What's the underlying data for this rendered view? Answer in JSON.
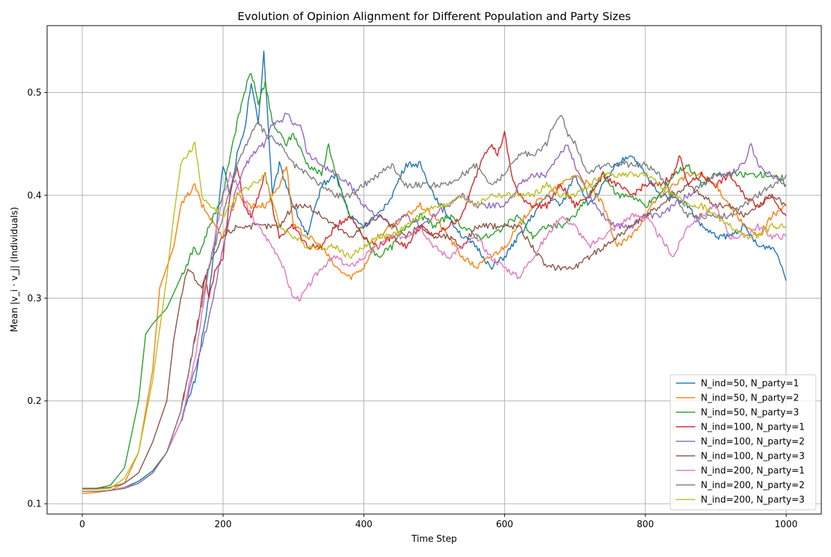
{
  "chart_data": {
    "type": "line",
    "title": "Evolution of Opinion Alignment for Different Population and Party Sizes",
    "xlabel": "Time Step",
    "ylabel": "Mean |v_i · v_j| (Individuals)",
    "xlim": [
      -50,
      1050
    ],
    "ylim": [
      0.09,
      0.565
    ],
    "x_ticks": [
      0,
      200,
      400,
      600,
      800,
      1000
    ],
    "y_ticks": [
      0.1,
      0.2,
      0.3,
      0.4,
      0.5
    ],
    "x_tick_labels": [
      "0",
      "200",
      "400",
      "600",
      "800",
      "1000"
    ],
    "y_tick_labels": [
      "0.1",
      "0.2",
      "0.3",
      "0.4",
      "0.5"
    ],
    "grid": true,
    "legend_position": "bottom-right",
    "series": [
      {
        "name": "N_ind=50, N_party=1",
        "color": "#1f77b4",
        "x": [
          0,
          20,
          40,
          60,
          80,
          100,
          120,
          140,
          160,
          180,
          200,
          210,
          220,
          230,
          240,
          250,
          258,
          270,
          280,
          300,
          320,
          340,
          360,
          380,
          400,
          420,
          440,
          460,
          480,
          500,
          520,
          540,
          560,
          580,
          600,
          620,
          640,
          660,
          680,
          700,
          720,
          740,
          760,
          780,
          800,
          820,
          840,
          860,
          880,
          900,
          920,
          940,
          960,
          980,
          990,
          1000
        ],
        "y": [
          0.112,
          0.112,
          0.113,
          0.116,
          0.122,
          0.132,
          0.15,
          0.18,
          0.22,
          0.3,
          0.43,
          0.4,
          0.44,
          0.46,
          0.51,
          0.47,
          0.54,
          0.4,
          0.43,
          0.39,
          0.36,
          0.41,
          0.42,
          0.38,
          0.37,
          0.38,
          0.4,
          0.43,
          0.43,
          0.4,
          0.38,
          0.36,
          0.35,
          0.33,
          0.34,
          0.36,
          0.38,
          0.4,
          0.39,
          0.42,
          0.39,
          0.41,
          0.43,
          0.44,
          0.42,
          0.4,
          0.4,
          0.39,
          0.37,
          0.36,
          0.36,
          0.37,
          0.35,
          0.35,
          0.34,
          0.317
        ]
      },
      {
        "name": "N_ind=50, N_party=2",
        "color": "#ff7f0e",
        "x": [
          0,
          20,
          40,
          60,
          80,
          100,
          110,
          120,
          130,
          140,
          150,
          160,
          170,
          180,
          200,
          220,
          240,
          260,
          280,
          290,
          300,
          320,
          340,
          360,
          380,
          400,
          420,
          440,
          460,
          480,
          500,
          520,
          540,
          560,
          580,
          600,
          620,
          640,
          660,
          680,
          700,
          720,
          740,
          760,
          780,
          800,
          820,
          840,
          860,
          880,
          900,
          920,
          940,
          960,
          980,
          1000
        ],
        "y": [
          0.11,
          0.111,
          0.113,
          0.12,
          0.15,
          0.23,
          0.31,
          0.33,
          0.35,
          0.39,
          0.4,
          0.41,
          0.39,
          0.38,
          0.36,
          0.4,
          0.39,
          0.39,
          0.41,
          0.43,
          0.37,
          0.36,
          0.35,
          0.33,
          0.32,
          0.33,
          0.36,
          0.37,
          0.38,
          0.39,
          0.38,
          0.36,
          0.34,
          0.33,
          0.34,
          0.35,
          0.37,
          0.39,
          0.4,
          0.41,
          0.42,
          0.41,
          0.39,
          0.35,
          0.36,
          0.38,
          0.4,
          0.41,
          0.42,
          0.42,
          0.41,
          0.39,
          0.37,
          0.36,
          0.38,
          0.39
        ]
      },
      {
        "name": "N_ind=50, N_party=3",
        "color": "#2ca02c",
        "x": [
          0,
          20,
          40,
          60,
          80,
          90,
          100,
          120,
          140,
          160,
          165,
          180,
          200,
          210,
          220,
          230,
          240,
          250,
          260,
          270,
          280,
          290,
          300,
          320,
          340,
          350,
          360,
          380,
          400,
          420,
          440,
          460,
          480,
          500,
          520,
          540,
          560,
          580,
          600,
          620,
          640,
          660,
          680,
          700,
          720,
          740,
          760,
          780,
          800,
          820,
          840,
          860,
          880,
          900,
          920,
          940,
          960,
          980,
          1000
        ],
        "y": [
          0.115,
          0.115,
          0.118,
          0.135,
          0.2,
          0.265,
          0.275,
          0.29,
          0.32,
          0.35,
          0.34,
          0.37,
          0.4,
          0.44,
          0.47,
          0.5,
          0.52,
          0.49,
          0.51,
          0.47,
          0.46,
          0.45,
          0.46,
          0.43,
          0.42,
          0.45,
          0.42,
          0.38,
          0.36,
          0.34,
          0.35,
          0.37,
          0.38,
          0.37,
          0.38,
          0.37,
          0.36,
          0.36,
          0.37,
          0.38,
          0.36,
          0.37,
          0.37,
          0.38,
          0.4,
          0.42,
          0.4,
          0.4,
          0.39,
          0.4,
          0.42,
          0.43,
          0.41,
          0.42,
          0.42,
          0.42,
          0.42,
          0.42,
          0.41
        ]
      },
      {
        "name": "N_ind=100, N_party=1",
        "color": "#d62728",
        "x": [
          0,
          20,
          40,
          60,
          80,
          100,
          120,
          140,
          160,
          175,
          180,
          190,
          200,
          210,
          220,
          230,
          240,
          260,
          280,
          300,
          320,
          340,
          360,
          380,
          400,
          420,
          440,
          460,
          480,
          500,
          520,
          540,
          560,
          570,
          580,
          590,
          600,
          610,
          620,
          640,
          660,
          680,
          700,
          720,
          740,
          760,
          780,
          800,
          820,
          840,
          850,
          860,
          880,
          900,
          920,
          940,
          960,
          980,
          1000
        ],
        "y": [
          0.112,
          0.112,
          0.113,
          0.115,
          0.12,
          0.13,
          0.15,
          0.19,
          0.26,
          0.32,
          0.3,
          0.33,
          0.34,
          0.4,
          0.43,
          0.39,
          0.38,
          0.42,
          0.36,
          0.37,
          0.35,
          0.35,
          0.37,
          0.38,
          0.36,
          0.35,
          0.36,
          0.35,
          0.37,
          0.36,
          0.37,
          0.38,
          0.42,
          0.44,
          0.45,
          0.44,
          0.46,
          0.42,
          0.4,
          0.39,
          0.39,
          0.41,
          0.39,
          0.4,
          0.42,
          0.41,
          0.4,
          0.41,
          0.41,
          0.42,
          0.44,
          0.41,
          0.42,
          0.41,
          0.42,
          0.4,
          0.39,
          0.4,
          0.38
        ]
      },
      {
        "name": "N_ind=100, N_party=2",
        "color": "#9467bd",
        "x": [
          0,
          20,
          40,
          60,
          80,
          100,
          120,
          140,
          160,
          180,
          200,
          220,
          240,
          260,
          270,
          280,
          290,
          300,
          310,
          320,
          340,
          360,
          380,
          400,
          420,
          440,
          460,
          480,
          500,
          520,
          540,
          560,
          580,
          600,
          620,
          640,
          660,
          680,
          690,
          700,
          720,
          740,
          760,
          780,
          800,
          820,
          840,
          860,
          880,
          900,
          920,
          940,
          950,
          960,
          980,
          1000
        ],
        "y": [
          0.112,
          0.112,
          0.113,
          0.115,
          0.12,
          0.13,
          0.15,
          0.18,
          0.23,
          0.28,
          0.35,
          0.41,
          0.44,
          0.45,
          0.47,
          0.47,
          0.48,
          0.47,
          0.47,
          0.44,
          0.43,
          0.42,
          0.41,
          0.39,
          0.38,
          0.37,
          0.38,
          0.37,
          0.38,
          0.39,
          0.4,
          0.39,
          0.39,
          0.39,
          0.41,
          0.42,
          0.42,
          0.44,
          0.45,
          0.43,
          0.4,
          0.38,
          0.37,
          0.37,
          0.38,
          0.38,
          0.39,
          0.4,
          0.41,
          0.42,
          0.42,
          0.43,
          0.45,
          0.43,
          0.42,
          0.41
        ]
      },
      {
        "name": "N_ind=100, N_party=3",
        "color": "#8c564b",
        "x": [
          0,
          20,
          40,
          60,
          80,
          100,
          120,
          130,
          140,
          150,
          160,
          170,
          180,
          200,
          220,
          240,
          260,
          280,
          300,
          320,
          340,
          360,
          380,
          400,
          420,
          440,
          460,
          480,
          500,
          520,
          540,
          560,
          580,
          600,
          620,
          640,
          660,
          680,
          700,
          720,
          740,
          760,
          780,
          800,
          820,
          840,
          860,
          880,
          900,
          920,
          940,
          960,
          980,
          1000
        ],
        "y": [
          0.115,
          0.115,
          0.116,
          0.12,
          0.13,
          0.16,
          0.2,
          0.26,
          0.3,
          0.33,
          0.32,
          0.31,
          0.33,
          0.36,
          0.37,
          0.37,
          0.37,
          0.37,
          0.39,
          0.39,
          0.38,
          0.37,
          0.36,
          0.37,
          0.38,
          0.37,
          0.36,
          0.37,
          0.36,
          0.36,
          0.35,
          0.37,
          0.37,
          0.37,
          0.37,
          0.35,
          0.33,
          0.33,
          0.33,
          0.34,
          0.35,
          0.36,
          0.37,
          0.38,
          0.39,
          0.4,
          0.41,
          0.4,
          0.39,
          0.39,
          0.38,
          0.39,
          0.4,
          0.39
        ]
      },
      {
        "name": "N_ind=200, N_party=1",
        "color": "#e377c2",
        "x": [
          0,
          20,
          40,
          60,
          80,
          100,
          120,
          140,
          160,
          180,
          200,
          210,
          220,
          240,
          260,
          280,
          300,
          310,
          320,
          340,
          360,
          380,
          400,
          420,
          440,
          460,
          480,
          500,
          520,
          540,
          560,
          580,
          600,
          620,
          640,
          660,
          680,
          700,
          720,
          740,
          760,
          780,
          800,
          820,
          840,
          860,
          880,
          900,
          920,
          940,
          960,
          980,
          1000
        ],
        "y": [
          0.112,
          0.112,
          0.113,
          0.116,
          0.12,
          0.13,
          0.15,
          0.18,
          0.24,
          0.33,
          0.4,
          0.42,
          0.41,
          0.38,
          0.36,
          0.34,
          0.3,
          0.3,
          0.31,
          0.33,
          0.34,
          0.33,
          0.34,
          0.35,
          0.36,
          0.36,
          0.37,
          0.35,
          0.34,
          0.35,
          0.36,
          0.34,
          0.33,
          0.32,
          0.34,
          0.36,
          0.38,
          0.37,
          0.35,
          0.36,
          0.37,
          0.38,
          0.38,
          0.36,
          0.34,
          0.37,
          0.38,
          0.39,
          0.36,
          0.36,
          0.37,
          0.36,
          0.36
        ]
      },
      {
        "name": "N_ind=200, N_party=2",
        "color": "#7f7f7f",
        "x": [
          0,
          20,
          40,
          60,
          80,
          100,
          120,
          140,
          160,
          180,
          200,
          220,
          240,
          250,
          260,
          280,
          300,
          320,
          340,
          360,
          380,
          400,
          420,
          440,
          460,
          480,
          500,
          520,
          540,
          560,
          580,
          600,
          620,
          640,
          660,
          670,
          680,
          690,
          700,
          720,
          740,
          760,
          780,
          800,
          820,
          840,
          860,
          880,
          900,
          920,
          940,
          960,
          980,
          1000
        ],
        "y": [
          0.112,
          0.112,
          0.113,
          0.115,
          0.12,
          0.13,
          0.15,
          0.19,
          0.26,
          0.33,
          0.38,
          0.43,
          0.46,
          0.47,
          0.46,
          0.45,
          0.43,
          0.42,
          0.41,
          0.4,
          0.4,
          0.41,
          0.42,
          0.43,
          0.41,
          0.41,
          0.41,
          0.41,
          0.42,
          0.43,
          0.41,
          0.42,
          0.44,
          0.44,
          0.45,
          0.47,
          0.48,
          0.46,
          0.45,
          0.42,
          0.43,
          0.43,
          0.43,
          0.43,
          0.42,
          0.4,
          0.38,
          0.38,
          0.38,
          0.38,
          0.39,
          0.4,
          0.41,
          0.42
        ]
      },
      {
        "name": "N_ind=200, N_party=3",
        "color": "#bcbd22",
        "x": [
          0,
          20,
          40,
          60,
          80,
          100,
          120,
          130,
          140,
          150,
          160,
          170,
          180,
          200,
          220,
          240,
          260,
          280,
          300,
          320,
          340,
          360,
          380,
          400,
          420,
          440,
          460,
          480,
          500,
          520,
          540,
          560,
          580,
          600,
          620,
          640,
          660,
          680,
          700,
          720,
          740,
          760,
          780,
          800,
          820,
          840,
          860,
          880,
          900,
          920,
          940,
          960,
          980,
          1000
        ],
        "y": [
          0.114,
          0.114,
          0.115,
          0.125,
          0.15,
          0.22,
          0.32,
          0.38,
          0.43,
          0.44,
          0.45,
          0.4,
          0.39,
          0.38,
          0.4,
          0.41,
          0.42,
          0.37,
          0.36,
          0.35,
          0.35,
          0.35,
          0.34,
          0.35,
          0.36,
          0.36,
          0.37,
          0.38,
          0.39,
          0.39,
          0.4,
          0.39,
          0.4,
          0.4,
          0.4,
          0.4,
          0.41,
          0.4,
          0.4,
          0.41,
          0.42,
          0.42,
          0.42,
          0.42,
          0.41,
          0.4,
          0.39,
          0.39,
          0.38,
          0.37,
          0.36,
          0.36,
          0.37,
          0.37
        ]
      }
    ]
  }
}
